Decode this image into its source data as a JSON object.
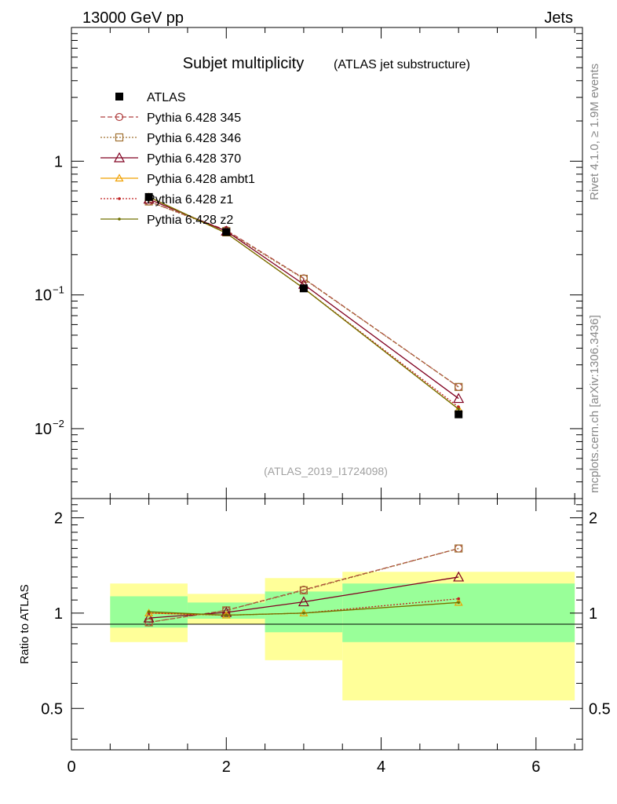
{
  "header": {
    "left": "13000 GeV pp",
    "right": "Jets"
  },
  "side": {
    "rivet": "Rivet 4.1.0, ≥ 1.9M events",
    "source": "mcplots.cern.ch [arXiv:1306.3436]"
  },
  "colors": {
    "data": "#000000",
    "p345": "#b04040",
    "p346": "#a07030",
    "p370": "#800020",
    "ambt1": "#f0a000",
    "z1": "#c02020",
    "z2": "#707000",
    "band_inner": "#99ff99",
    "band_outer": "#ffff99"
  },
  "chart_data": [
    {
      "type": "line",
      "title": "Subjet multiplicity",
      "subtitle": "(ATLAS jet substructure)",
      "watermark": "(ATLAS_2019_I1724098)",
      "yscale": "log",
      "ylim": [
        0.003,
        10
      ],
      "xlim": [
        0,
        6.6
      ],
      "yticks": [
        {
          "v": 1,
          "base": "1",
          "exp": ""
        },
        {
          "v": 0.1,
          "base": "10",
          "exp": "−1"
        },
        {
          "v": 0.01,
          "base": "10",
          "exp": "−2"
        }
      ],
      "legend": [
        "ATLAS",
        "Pythia 6.428 345",
        "Pythia 6.428 346",
        "Pythia 6.428 370",
        "Pythia 6.428 ambt1",
        "Pythia 6.428 z1",
        "Pythia 6.428 z2"
      ],
      "x": [
        1,
        2,
        3,
        5
      ],
      "data": {
        "name": "ATLAS",
        "values": [
          0.54,
          0.295,
          0.112,
          0.0128
        ]
      },
      "series": [
        {
          "name": "Pythia 6.428 345",
          "key": "p345",
          "marker": "circle",
          "dash": "6,3",
          "values": [
            0.5,
            0.305,
            0.133,
            0.0205
          ]
        },
        {
          "name": "Pythia 6.428 346",
          "key": "p346",
          "marker": "square",
          "dash": "2,2",
          "values": [
            0.5,
            0.3,
            0.132,
            0.0205
          ]
        },
        {
          "name": "Pythia 6.428 370",
          "key": "p370",
          "marker": "triangle-big",
          "dash": "",
          "values": [
            0.52,
            0.3,
            0.12,
            0.0168
          ]
        },
        {
          "name": "Pythia 6.428 ambt1",
          "key": "ambt1",
          "marker": "triangle",
          "dash": "",
          "values": [
            0.54,
            0.29,
            0.112,
            0.014
          ]
        },
        {
          "name": "Pythia 6.428 z1",
          "key": "z1",
          "marker": "dot",
          "dash": "2,2",
          "values": [
            0.54,
            0.29,
            0.112,
            0.0145
          ]
        },
        {
          "name": "Pythia 6.428 z2",
          "key": "z2",
          "marker": "dot",
          "dash": "",
          "values": [
            0.54,
            0.29,
            0.112,
            0.014
          ]
        }
      ]
    },
    {
      "type": "line",
      "ylabel": "Ratio to ATLAS",
      "yscale": "log",
      "ylim": [
        0.37,
        2.3
      ],
      "xlim": [
        0,
        6.6
      ],
      "xticks": [
        "0",
        "2",
        "4",
        "6"
      ],
      "yticks": [
        {
          "v": 0.5,
          "label": "0.5"
        },
        {
          "v": 1,
          "label": "1"
        },
        {
          "v": 2,
          "label": "2"
        }
      ],
      "bands": [
        {
          "x0": 0.5,
          "x1": 1.5,
          "inner": [
            0.9,
            1.13
          ],
          "outer": [
            0.81,
            1.24
          ]
        },
        {
          "x0": 1.5,
          "x1": 2.5,
          "inner": [
            0.96,
            1.08
          ],
          "outer": [
            0.92,
            1.15
          ]
        },
        {
          "x0": 2.5,
          "x1": 3.5,
          "inner": [
            0.87,
            1.17
          ],
          "outer": [
            0.71,
            1.29
          ]
        },
        {
          "x0": 3.5,
          "x1": 6.5,
          "inner": [
            0.81,
            1.24
          ],
          "outer": [
            0.53,
            1.35
          ]
        }
      ],
      "x": [
        1,
        2,
        3,
        5
      ],
      "series": [
        {
          "key": "p345",
          "marker": "circle",
          "dash": "6,3",
          "values": [
            0.935,
            1.02,
            1.185,
            1.6
          ]
        },
        {
          "key": "p346",
          "marker": "square",
          "dash": "2,2",
          "values": [
            0.935,
            1.02,
            1.18,
            1.6
          ]
        },
        {
          "key": "p370",
          "marker": "triangle-big",
          "dash": "",
          "values": [
            0.965,
            1.005,
            1.085,
            1.3
          ]
        },
        {
          "key": "ambt1",
          "marker": "triangle",
          "dash": "",
          "values": [
            1.0,
            0.985,
            1.0,
            1.08
          ]
        },
        {
          "key": "z1",
          "marker": "dot",
          "dash": "2,2",
          "values": [
            1.0,
            0.985,
            1.0,
            1.11
          ]
        },
        {
          "key": "z2",
          "marker": "dot",
          "dash": "",
          "values": [
            1.01,
            0.985,
            1.0,
            1.08
          ]
        }
      ]
    }
  ]
}
